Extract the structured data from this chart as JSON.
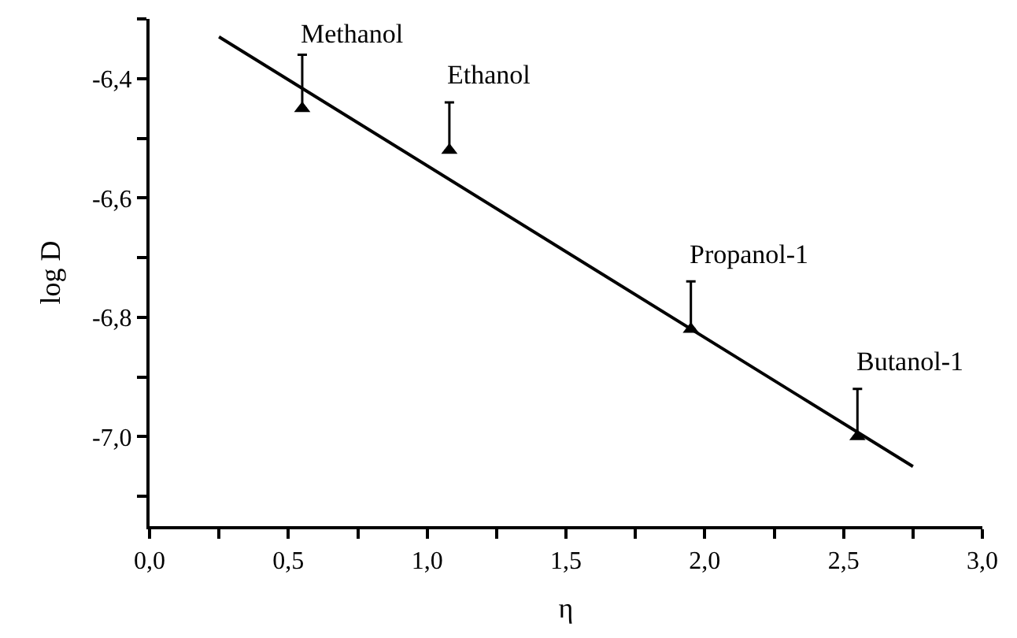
{
  "chart_data": {
    "type": "scatter",
    "xlabel": "η",
    "ylabel": "log D",
    "xlim": [
      0,
      3
    ],
    "ylim": [
      -7.15,
      -6.3
    ],
    "xticks": [
      {
        "value": 0,
        "label": "0,0"
      },
      {
        "value": 0.25,
        "label": null
      },
      {
        "value": 0.5,
        "label": "0,5"
      },
      {
        "value": 0.75,
        "label": null
      },
      {
        "value": 1,
        "label": "1,0"
      },
      {
        "value": 1.25,
        "label": null
      },
      {
        "value": 1.5,
        "label": "1,5"
      },
      {
        "value": 1.75,
        "label": null
      },
      {
        "value": 2,
        "label": "2,0"
      },
      {
        "value": 2.25,
        "label": null
      },
      {
        "value": 2.5,
        "label": "2,5"
      },
      {
        "value": 2.75,
        "label": null
      },
      {
        "value": 3,
        "label": "3,0"
      }
    ],
    "yticks": [
      {
        "value": -6.3,
        "label": null
      },
      {
        "value": -6.4,
        "label": "-6,4"
      },
      {
        "value": -6.5,
        "label": null
      },
      {
        "value": -6.6,
        "label": "-6,6"
      },
      {
        "value": -6.7,
        "label": null
      },
      {
        "value": -6.8,
        "label": "-6,8"
      },
      {
        "value": -6.9,
        "label": null
      },
      {
        "value": -7.0,
        "label": "-7,0"
      },
      {
        "value": -7.1,
        "label": null
      }
    ],
    "series": [
      {
        "color": "#000000",
        "marker": "triangle",
        "x": [
          0.55,
          1.08,
          1.95,
          2.55
        ],
        "values": [
          -6.45,
          -6.52,
          -6.82,
          -7.0
        ],
        "errors": [
          [
            -6.45,
            -6.36
          ],
          [
            -6.52,
            -6.44
          ],
          [
            -6.82,
            -6.74
          ],
          [
            -7.0,
            -6.92
          ]
        ]
      },
      {
        "type": "line",
        "color": "#000000",
        "marker": "none",
        "line_style": "solid",
        "x": [
          0.25,
          2.75
        ],
        "values": [
          -6.33,
          -7.05
        ]
      }
    ],
    "annotations": [
      {
        "text": "Methanol",
        "x": 0.55,
        "y": -6.45
      },
      {
        "text": "Ethanol",
        "x": 1.08,
        "y": -6.52
      },
      {
        "text": "Propanol-1",
        "x": 1.95,
        "y": -6.82
      },
      {
        "text": "Butanol-1",
        "x": 2.55,
        "y": -7.0
      }
    ]
  }
}
